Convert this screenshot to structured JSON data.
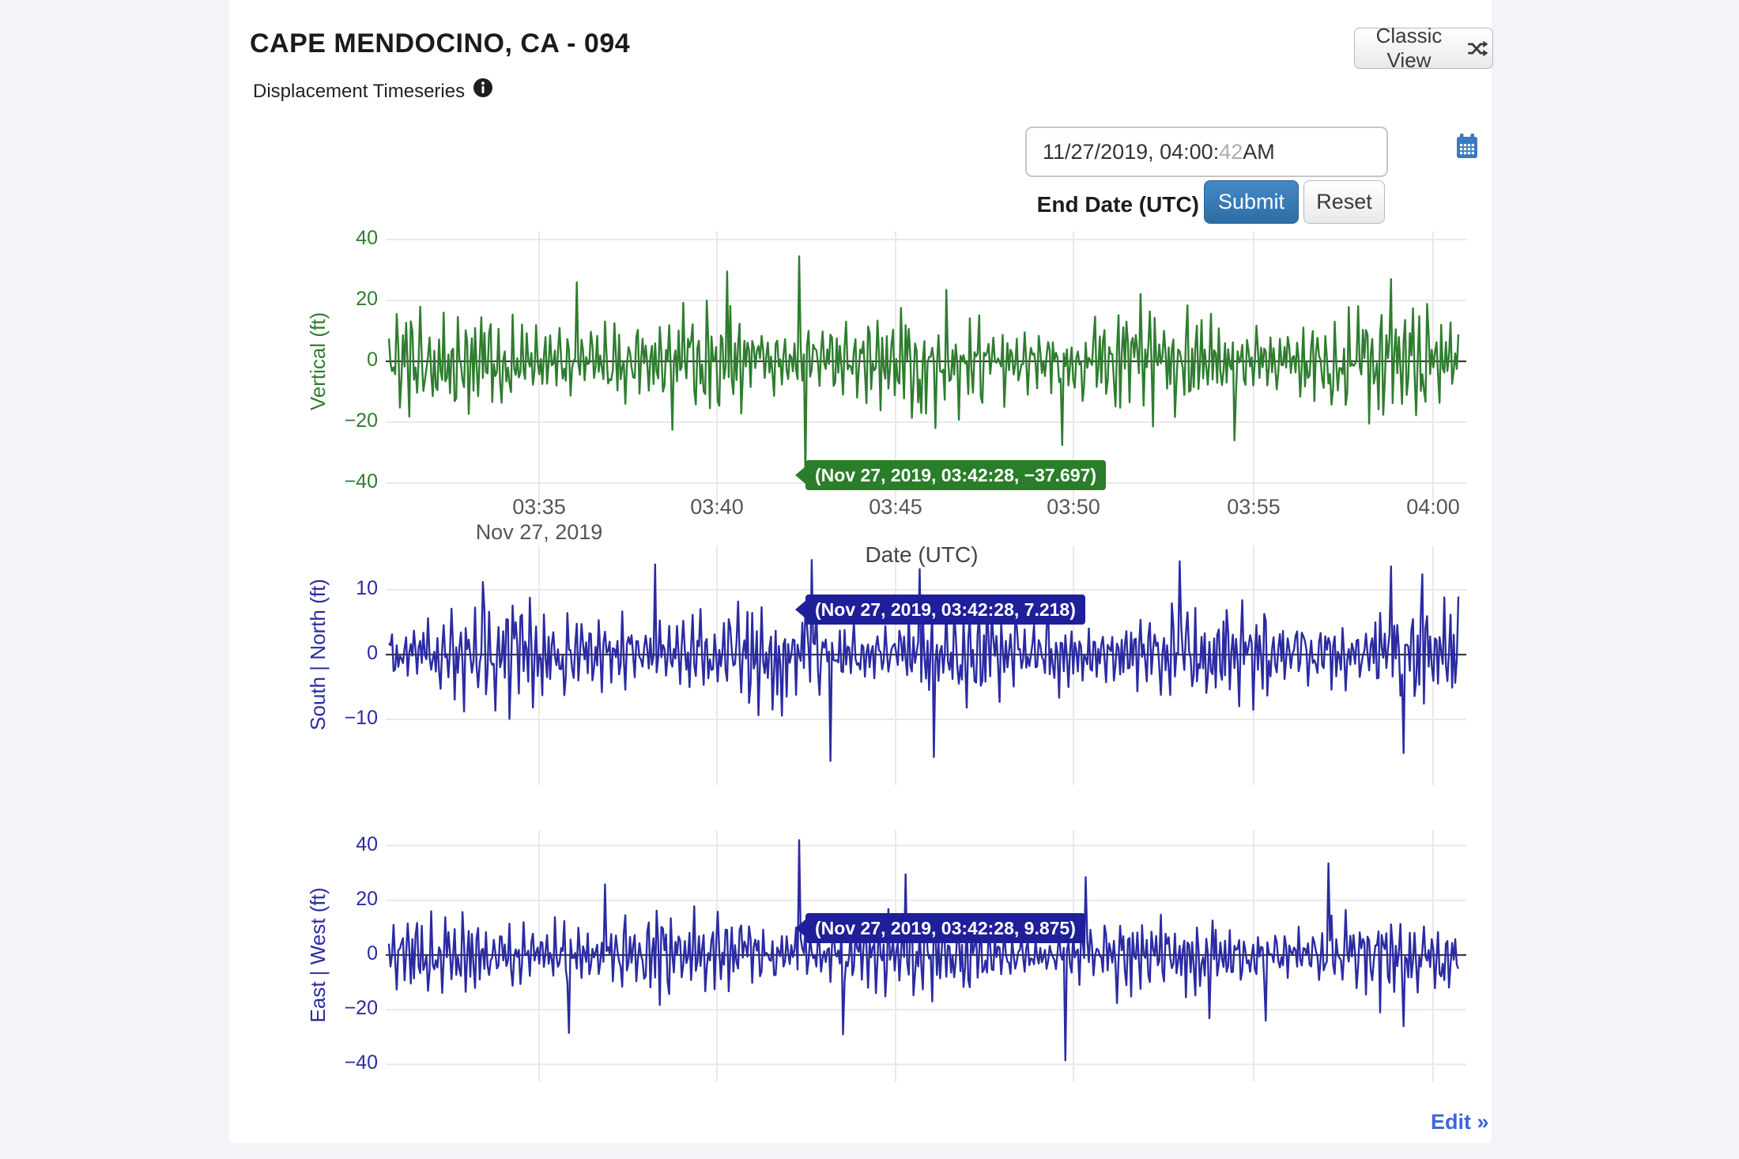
{
  "header": {
    "title": "CAPE MENDOCINO, CA - 094",
    "subtitle": "Displacement Timeseries",
    "classic_view_label": "Classic View"
  },
  "controls": {
    "end_date_value_main": "11/27/2019, 04:00:",
    "end_date_value_seconds": "42",
    "end_date_value_suffix": " AM",
    "end_date_label": "End Date (UTC)",
    "submit_label": "Submit",
    "reset_label": "Reset"
  },
  "footer": {
    "edit_link": "Edit »"
  },
  "colors": {
    "page_background": "#f3f3f8",
    "card_background": "#ffffff",
    "vertical_trace": "#2e7d2e",
    "horizontal_trace": "#2b2ba3",
    "grid_line": "#e9e9e9",
    "zero_line": "#3c3c3c",
    "submit_blue": "#2e6da4",
    "calendar_icon_blue": "#3a7abd",
    "link_blue": "#3c67d6"
  },
  "chart_data": [
    {
      "type": "line",
      "name": "vertical",
      "ylabel": "Vertical (ft)",
      "color": "#2e7d2e",
      "ylim": [
        -40,
        40
      ],
      "yticks": [
        40,
        20,
        0,
        -20,
        -40
      ],
      "xticks": [
        "03:35",
        "03:40",
        "03:45",
        "03:50",
        "03:55",
        "04:00"
      ],
      "x_first_tick_date": "Nov 27, 2019",
      "xlabel": "Date (UTC)",
      "x_range_utc": [
        "03:30:45",
        "04:00:58"
      ],
      "tooltip": {
        "label": "(Nov 27, 2019, 03:42:28, −37.697)",
        "point_time": "03:42:28",
        "point_value": -37.697
      },
      "noise": {
        "seed": 11057,
        "n": 684,
        "amp": 14.5,
        "clamp": [
          -29,
          28
        ],
        "forced_points": [
          {
            "i": 120,
            "v": 26
          },
          {
            "i": 216,
            "v": 29.5
          },
          {
            "i": 262,
            "v": 34.5
          },
          {
            "i": 266,
            "v": -37.697
          },
          {
            "i": 268,
            "v": 10
          },
          {
            "i": 430,
            "v": -27.5
          },
          {
            "i": 540,
            "v": -26
          },
          {
            "i": 640,
            "v": 27
          }
        ]
      }
    },
    {
      "type": "line",
      "name": "south-north",
      "ylabel": "South | North (ft)",
      "color": "#2b2ba3",
      "ylim": [
        -17,
        15.5
      ],
      "yticks": [
        10,
        0,
        -10
      ],
      "xticks": [
        "03:35",
        "03:40",
        "03:45",
        "03:50",
        "03:55",
        "04:00"
      ],
      "tooltip": {
        "label": "(Nov 27, 2019, 03:42:28, 7.218)",
        "point_time": "03:42:28",
        "point_value": 7.218
      },
      "noise": {
        "seed": 22139,
        "n": 684,
        "amp": 6.9,
        "clamp": [
          -12.6,
          11.8
        ],
        "forced_points": [
          {
            "i": 60,
            "v": 11.2
          },
          {
            "i": 170,
            "v": 13.9
          },
          {
            "i": 266,
            "v": 7.218
          },
          {
            "i": 270,
            "v": 14.6
          },
          {
            "i": 282,
            "v": -16.4
          },
          {
            "i": 339,
            "v": 13.2
          },
          {
            "i": 348,
            "v": -15.8
          },
          {
            "i": 505,
            "v": 14.4
          },
          {
            "i": 640,
            "v": 13.6
          },
          {
            "i": 648,
            "v": -15.2
          },
          {
            "i": 660,
            "v": 12.4
          }
        ]
      }
    },
    {
      "type": "line",
      "name": "east-west",
      "ylabel": "East | West (ft)",
      "color": "#2b2ba3",
      "ylim": [
        -46,
        46
      ],
      "yticks": [
        40,
        20,
        0,
        -20,
        -40
      ],
      "xticks": [
        "03:35",
        "03:40",
        "03:45",
        "03:50",
        "03:55",
        "04:00"
      ],
      "tooltip": {
        "label": "(Nov 27, 2019, 03:42:28, 9.875)",
        "point_time": "03:42:28",
        "point_value": 9.875
      },
      "noise": {
        "seed": 33211,
        "n": 684,
        "amp": 12.5,
        "clamp": [
          -27,
          26
        ],
        "forced_points": [
          {
            "i": 115,
            "v": -28.5
          },
          {
            "i": 138,
            "v": 25.8
          },
          {
            "i": 262,
            "v": 42
          },
          {
            "i": 266,
            "v": 9.875
          },
          {
            "i": 290,
            "v": -29
          },
          {
            "i": 330,
            "v": 29.5
          },
          {
            "i": 432,
            "v": -38.5
          },
          {
            "i": 445,
            "v": 28.5
          },
          {
            "i": 560,
            "v": -24
          },
          {
            "i": 600,
            "v": 33.5
          },
          {
            "i": 648,
            "v": -26
          }
        ]
      }
    }
  ]
}
